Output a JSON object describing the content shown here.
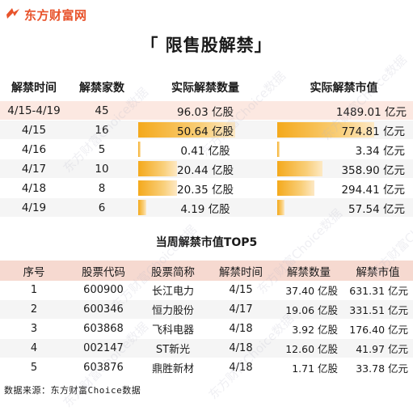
{
  "brand": {
    "name": "东方财富网",
    "color": "#e8532b"
  },
  "title": "「 限售股解禁」",
  "table1": {
    "headers": [
      "解禁时间",
      "解禁家数",
      "实际解禁数量",
      "实际解禁市值"
    ],
    "total": {
      "period": "4/15-4/19",
      "count": "45",
      "shares": "96.03 亿股",
      "value": "1489.01 亿元"
    },
    "rows": [
      {
        "date": "4/15",
        "count": "16",
        "shares": "50.64 亿股",
        "value": "774.81 亿元",
        "shares_num": 50.64,
        "value_num": 774.81
      },
      {
        "date": "4/16",
        "count": "5",
        "shares": "0.41 亿股",
        "value": "3.34 亿元",
        "shares_num": 0.41,
        "value_num": 3.34
      },
      {
        "date": "4/17",
        "count": "10",
        "shares": "20.44 亿股",
        "value": "358.90 亿元",
        "shares_num": 20.44,
        "value_num": 358.9
      },
      {
        "date": "4/18",
        "count": "8",
        "shares": "20.35 亿股",
        "value": "294.41 亿元",
        "shares_num": 20.35,
        "value_num": 294.41
      },
      {
        "date": "4/19",
        "count": "6",
        "shares": "4.19 亿股",
        "value": "57.54 亿元",
        "shares_num": 4.19,
        "value_num": 57.54
      }
    ]
  },
  "section2_title": "当周解禁市值TOP5",
  "table2": {
    "headers": [
      "序号",
      "股票代码",
      "股票简称",
      "解禁时间",
      "解禁数量",
      "解禁市值"
    ],
    "rows": [
      {
        "no": "1",
        "code": "600900",
        "name": "长江电力",
        "date": "4/15",
        "shares": "37.40 亿股",
        "value": "631.31 亿元"
      },
      {
        "no": "2",
        "code": "600346",
        "name": "恒力股份",
        "date": "4/17",
        "shares": "19.06 亿股",
        "value": "331.51 亿元"
      },
      {
        "no": "3",
        "code": "603868",
        "name": "飞科电器",
        "date": "4/18",
        "shares": "3.92 亿股",
        "value": "176.40 亿元"
      },
      {
        "no": "4",
        "code": "002147",
        "name": "ST新光",
        "date": "4/18",
        "shares": "12.60 亿股",
        "value": "41.97 亿元"
      },
      {
        "no": "5",
        "code": "603876",
        "name": "鼎胜新材",
        "date": "4/18",
        "shares": "1.71 亿股",
        "value": "33.78 亿元"
      }
    ]
  },
  "footer": "数据来源：东方财富Choice数据",
  "watermark": "东方财富Choice数据",
  "colors": {
    "bar": "#f4a91c",
    "header_bg": "#f6d9d0",
    "total_row_bg": "#fce8e1"
  }
}
